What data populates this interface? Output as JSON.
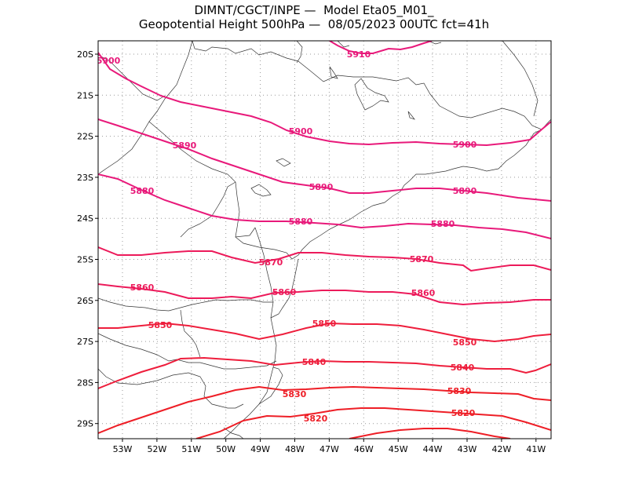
{
  "title": {
    "line1": "DIMNT/CGCT/INPE —  Model Eta05_M01_",
    "line2": "Geopotential Height 500hPa —  08/05/2023 00UTC fct=41h"
  },
  "axes": {
    "lat_labels": [
      "20S",
      "21S",
      "22S",
      "23S",
      "24S",
      "25S",
      "26S",
      "27S",
      "28S",
      "29S"
    ],
    "lon_labels": [
      "53W",
      "52W",
      "51W",
      "50W",
      "49W",
      "48W",
      "47W",
      "46W",
      "45W",
      "44W",
      "43W",
      "42W",
      "41W"
    ]
  },
  "colors": {
    "c5910": "#e8197a",
    "c5900": "#e8197a",
    "c5890": "#e8197a",
    "c5880": "#e8197a",
    "c5870": "#ec1a5a",
    "c5860": "#ec1a5a",
    "c5850": "#ee1e3c",
    "c5840": "#ee1e3c",
    "c5830": "#ee1e26",
    "c5820": "#ee1e26",
    "c5810": "#ee1e26"
  },
  "contour_labels": {
    "l5910": "5910",
    "l5900a": "5900",
    "l5900b": "5900",
    "l5900c": "5900",
    "l5890a": "5890",
    "l5890b": "5890",
    "l5890c": "5890",
    "l5880a": "5880",
    "l5880b": "5880",
    "l5880c": "5880",
    "l5870a": "5870",
    "l5870b": "5870",
    "l5860a": "5860",
    "l5860b": "5860",
    "l5860c": "5860",
    "l5850a": "5850",
    "l5850b": "5850",
    "l5850c": "5850",
    "l5840a": "5840",
    "l5840b": "5840",
    "l5830a": "5830",
    "l5830b": "5830",
    "l5820a": "5820",
    "l5820b": "5820"
  }
}
